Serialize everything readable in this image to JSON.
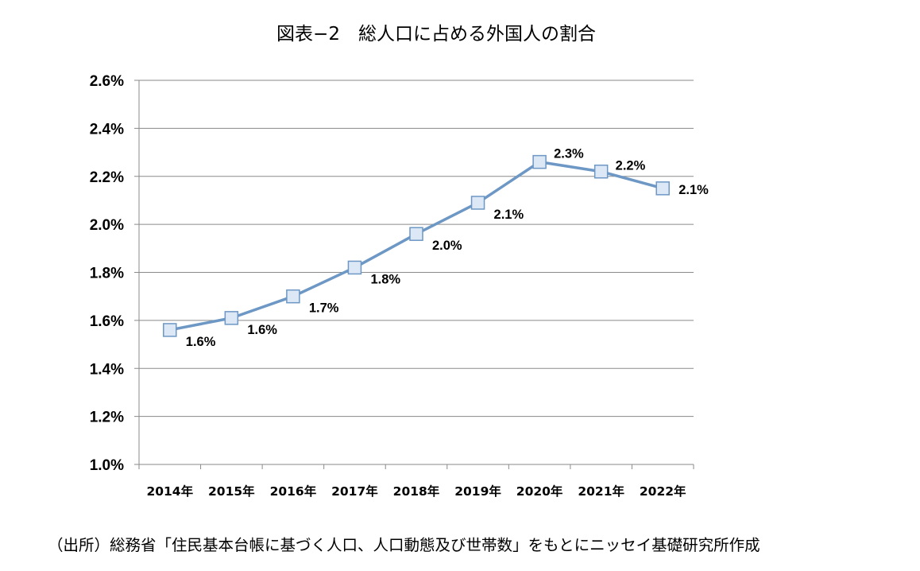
{
  "chart_data": {
    "type": "line",
    "title": "図表−2　総人口に占める外国人の割合",
    "source_note": "（出所）総務省「住民基本台帳に基づく人口、人口動態及び世帯数」をもとにニッセイ基礎研究所作成",
    "categories": [
      "2014年",
      "2015年",
      "2016年",
      "2017年",
      "2018年",
      "2019年",
      "2020年",
      "2021年",
      "2022年"
    ],
    "series": [
      {
        "values": [
          1.56,
          1.61,
          1.7,
          1.82,
          1.96,
          2.09,
          2.26,
          2.22,
          2.15
        ],
        "data_labels": [
          "1.6%",
          "1.6%",
          "1.7%",
          "1.8%",
          "2.0%",
          "2.1%",
          "2.3%",
          "2.2%",
          "2.1%"
        ]
      }
    ],
    "y_ticks": [
      1.0,
      1.2,
      1.4,
      1.6,
      1.8,
      2.0,
      2.2,
      2.4,
      2.6
    ],
    "y_tick_labels": [
      "1.0%",
      "1.2%",
      "1.4%",
      "1.6%",
      "1.8%",
      "2.0%",
      "2.2%",
      "2.4%",
      "2.6%"
    ],
    "ylim": [
      1.0,
      2.6
    ],
    "grid": true,
    "legend": "none",
    "colors": {
      "line": "#6d97c4",
      "marker_fill": "#dce8f6",
      "marker_stroke": "#6d97c4",
      "grid": "#8a8a8a",
      "axis": "#8a8a8a"
    }
  }
}
